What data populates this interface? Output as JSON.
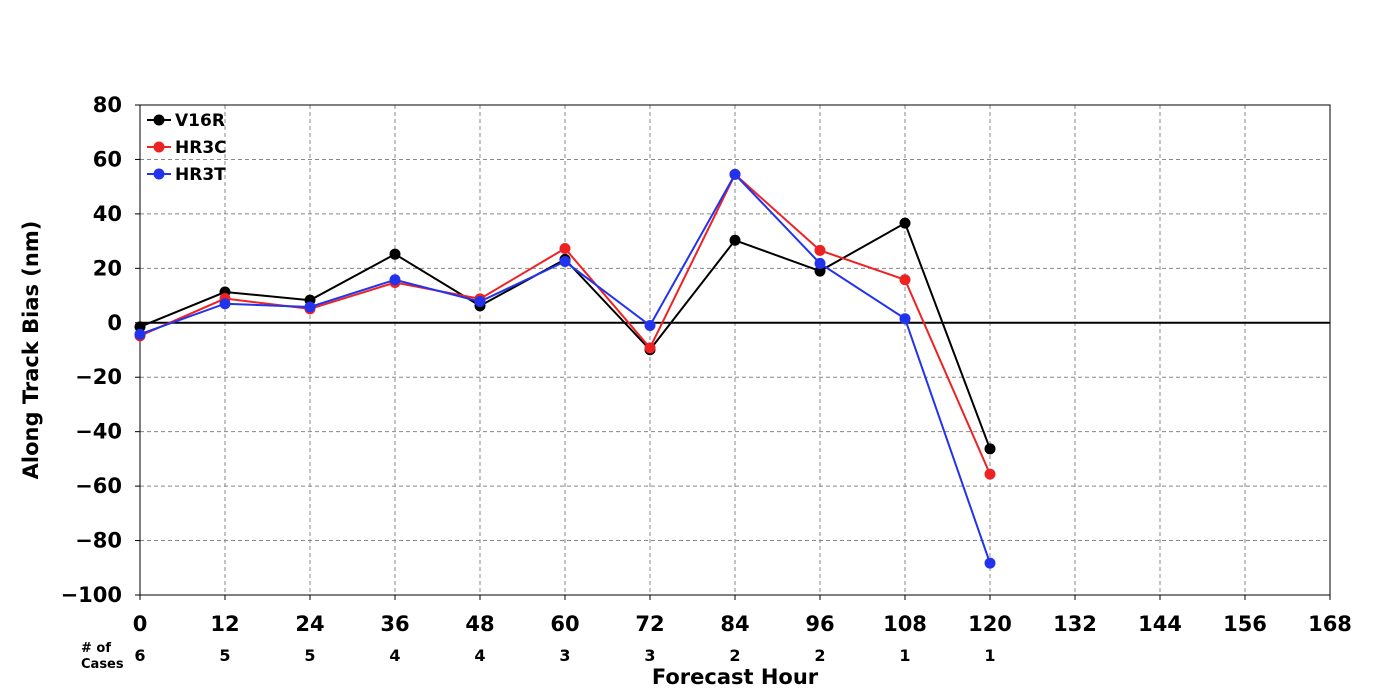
{
  "chart_data": {
    "type": "line",
    "xlabel": "Forecast Hour",
    "ylabel": "Along Track Bias (nm)",
    "xlim": [
      0,
      168
    ],
    "ylim": [
      -100,
      80
    ],
    "x_ticks": [
      0,
      12,
      24,
      36,
      48,
      60,
      72,
      84,
      96,
      108,
      120,
      132,
      144,
      156,
      168
    ],
    "y_ticks": [
      -100,
      -80,
      -60,
      -40,
      -20,
      0,
      20,
      40,
      60,
      80
    ],
    "grid": true,
    "legend_position": "top-left",
    "cases_label": [
      "# of",
      "Cases"
    ],
    "cases_x": [
      0,
      12,
      24,
      36,
      48,
      60,
      72,
      84,
      96,
      108,
      120
    ],
    "cases": [
      "6",
      "5",
      "5",
      "4",
      "4",
      "3",
      "3",
      "2",
      "2",
      "1",
      "1"
    ],
    "x": [
      0,
      12,
      24,
      36,
      48,
      60,
      72,
      84,
      96,
      108,
      120
    ],
    "series": [
      {
        "name": "V16R",
        "color": "#000000",
        "values": [
          -1.5,
          11.3,
          8.3,
          25.2,
          6.2,
          23.3,
          -9.9,
          30.3,
          19.0,
          36.6,
          -46.3
        ]
      },
      {
        "name": "HR3C",
        "color": "#ee2222",
        "values": [
          -4.8,
          8.9,
          5.1,
          14.8,
          8.8,
          27.3,
          -9.2,
          54.5,
          26.6,
          15.8,
          -55.6
        ]
      },
      {
        "name": "HR3T",
        "color": "#2233ee",
        "values": [
          -4.2,
          7.0,
          5.8,
          15.8,
          7.8,
          22.5,
          -1.0,
          54.5,
          21.8,
          1.5,
          -88.3
        ]
      }
    ]
  }
}
